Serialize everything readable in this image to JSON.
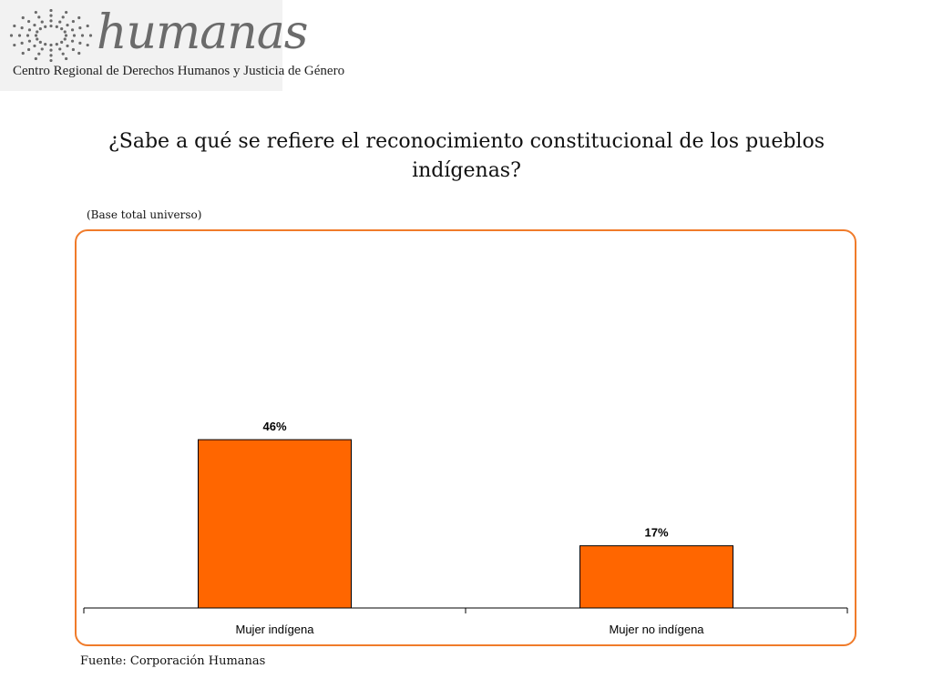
{
  "logo": {
    "wordmark": "humanas",
    "tagline": "Centro Regional de Derechos Humanos y Justicia de Género",
    "icon": "radial-dots-logo-icon"
  },
  "title": "¿Sabe a qué se refiere el reconocimiento constitucional de los pueblos indígenas?",
  "base_note": "(Base total universo)",
  "source": "Fuente: Corporación Humanas",
  "colors": {
    "bar": "#ff6600",
    "frame": "#f07b2a",
    "logo_gray": "#6b6b6b"
  },
  "chart_data": {
    "type": "bar",
    "title": "¿Sabe a qué se refiere el reconocimiento constitucional de los pueblos indígenas?",
    "categories": [
      "Mujer indígena",
      "Mujer no indígena"
    ],
    "values": [
      46,
      17
    ],
    "value_labels": [
      "46%",
      "17%"
    ],
    "unit": "%",
    "xlabel": "",
    "ylabel": "",
    "ylim": [
      0,
      100
    ],
    "grid": false,
    "legend": "none"
  }
}
